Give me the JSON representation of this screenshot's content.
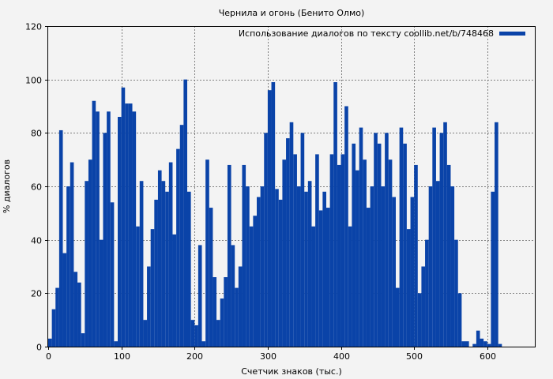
{
  "chart_data": {
    "type": "bar",
    "title": "Чернила и огонь (Бенито Олмо)",
    "xlabel": "Счетчик знаков (тыс.)",
    "ylabel": "% диалогов",
    "xlim": [
      0,
      665
    ],
    "ylim": [
      0,
      120
    ],
    "x_ticks": [
      "0",
      "100",
      "200",
      "300",
      "400",
      "500",
      "600"
    ],
    "y_ticks": [
      "0",
      "20",
      "40",
      "60",
      "80",
      "100",
      "120"
    ],
    "grid": true,
    "legend_position": "top-right",
    "colors": {
      "series": "#0a43a8",
      "background": "#f3f3f3"
    },
    "series": [
      {
        "name": "Использование диалогов по тексту coollib.net/b/748468",
        "bin_width": 5,
        "x": [
          0,
          5,
          10,
          15,
          20,
          25,
          30,
          35,
          40,
          45,
          50,
          55,
          60,
          65,
          70,
          75,
          80,
          85,
          90,
          95,
          100,
          105,
          110,
          115,
          120,
          125,
          130,
          135,
          140,
          145,
          150,
          155,
          160,
          165,
          170,
          175,
          180,
          185,
          190,
          195,
          200,
          205,
          210,
          215,
          220,
          225,
          230,
          235,
          240,
          245,
          250,
          255,
          260,
          265,
          270,
          275,
          280,
          285,
          290,
          295,
          300,
          305,
          310,
          315,
          320,
          325,
          330,
          335,
          340,
          345,
          350,
          355,
          360,
          365,
          370,
          375,
          380,
          385,
          390,
          395,
          400,
          405,
          410,
          415,
          420,
          425,
          430,
          435,
          440,
          445,
          450,
          455,
          460,
          465,
          470,
          475,
          480,
          485,
          490,
          495,
          500,
          505,
          510,
          515,
          520,
          525,
          530,
          535,
          540,
          545,
          550,
          555,
          560,
          565,
          570,
          575,
          580,
          585,
          590,
          595,
          600,
          605,
          610,
          615,
          620,
          625,
          630,
          635,
          640,
          645,
          650,
          655,
          660
        ],
        "values": [
          3,
          14,
          22,
          81,
          35,
          60,
          69,
          28,
          24,
          5,
          62,
          70,
          92,
          88,
          40,
          80,
          88,
          54,
          2,
          86,
          97,
          91,
          91,
          88,
          45,
          62,
          10,
          30,
          44,
          55,
          66,
          62,
          58,
          69,
          42,
          74,
          83,
          100,
          58,
          10,
          8,
          38,
          2,
          70,
          52,
          26,
          10,
          18,
          26,
          68,
          38,
          22,
          30,
          68,
          60,
          45,
          49,
          56,
          60,
          80,
          96,
          99,
          59,
          55,
          70,
          78,
          84,
          72,
          60,
          80,
          58,
          62,
          45,
          72,
          51,
          58,
          52,
          72,
          99,
          68,
          72,
          90,
          45,
          76,
          66,
          82,
          70,
          52,
          60,
          80,
          76,
          60,
          80,
          70,
          56,
          22,
          82,
          76,
          44,
          56,
          68,
          20,
          30,
          40,
          60,
          82,
          62,
          80,
          84,
          68,
          60,
          40,
          20,
          2,
          2,
          0,
          1,
          6,
          3,
          2,
          1,
          58,
          84,
          1,
          0,
          0,
          0,
          0,
          0,
          0,
          0,
          0,
          0
        ]
      }
    ]
  }
}
